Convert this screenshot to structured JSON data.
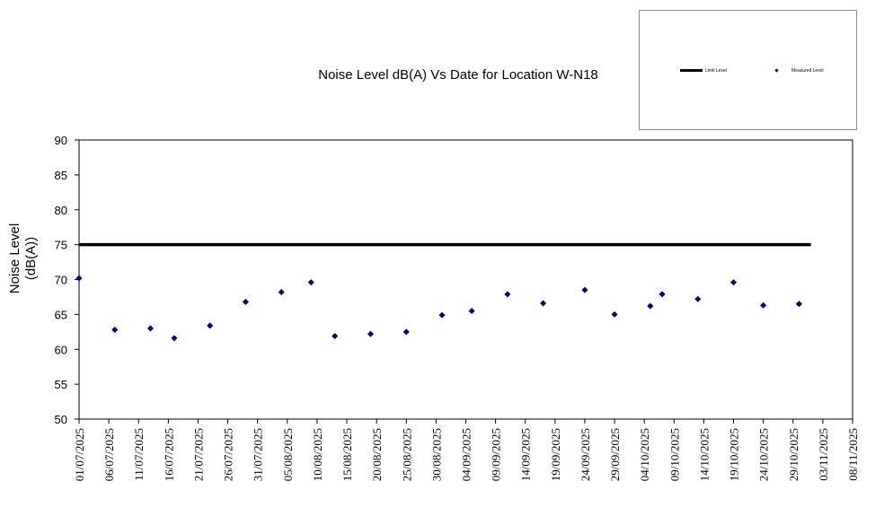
{
  "chart_data": {
    "type": "scatter",
    "title": "Noise Level dB(A) Vs Date for Location W-N18",
    "ylabel_line1": "Noise Level",
    "ylabel_line2": "(dB(A))",
    "xlabel": "",
    "ylim": [
      50,
      90
    ],
    "yticks": [
      "50",
      "55",
      "60",
      "65",
      "70",
      "75",
      "80",
      "85",
      "90"
    ],
    "xlim": [
      "2025-07-01",
      "2025-11-08"
    ],
    "xticks": [
      "01/07/2025",
      "06/07/2025",
      "11/07/2025",
      "16/07/2025",
      "21/07/2025",
      "26/07/2025",
      "31/07/2025",
      "05/08/2025",
      "10/08/2025",
      "15/08/2025",
      "20/08/2025",
      "25/08/2025",
      "30/08/2025",
      "04/09/2025",
      "09/09/2025",
      "14/09/2025",
      "19/09/2025",
      "24/09/2025",
      "29/09/2025",
      "04/10/2025",
      "09/10/2025",
      "14/10/2025",
      "19/10/2025",
      "24/10/2025",
      "29/10/2025",
      "03/11/2025",
      "08/11/2025"
    ],
    "legend_position": "top-right",
    "grid": false,
    "series": [
      {
        "name": "Limit Level",
        "kind": "line",
        "color": "#000000",
        "points": [
          [
            "2025-07-01",
            75
          ],
          [
            "2025-11-01",
            75
          ]
        ]
      },
      {
        "name": "Measured Level",
        "kind": "marker",
        "color": "#00007f",
        "points": [
          [
            "2025-07-01",
            70.2
          ],
          [
            "2025-07-07",
            62.8
          ],
          [
            "2025-07-13",
            63.0
          ],
          [
            "2025-07-17",
            61.6
          ],
          [
            "2025-07-23",
            63.4
          ],
          [
            "2025-07-29",
            66.8
          ],
          [
            "2025-08-04",
            68.2
          ],
          [
            "2025-08-09",
            69.6
          ],
          [
            "2025-08-13",
            61.9
          ],
          [
            "2025-08-19",
            62.2
          ],
          [
            "2025-08-25",
            62.5
          ],
          [
            "2025-08-31",
            64.9
          ],
          [
            "2025-09-05",
            65.5
          ],
          [
            "2025-09-11",
            67.9
          ],
          [
            "2025-09-17",
            66.6
          ],
          [
            "2025-09-24",
            68.5
          ],
          [
            "2025-09-29",
            65.0
          ],
          [
            "2025-10-05",
            66.2
          ],
          [
            "2025-10-07",
            67.9
          ],
          [
            "2025-10-13",
            67.2
          ],
          [
            "2025-10-19",
            69.6
          ],
          [
            "2025-10-24",
            66.3
          ],
          [
            "2025-10-30",
            66.5
          ]
        ]
      }
    ]
  }
}
